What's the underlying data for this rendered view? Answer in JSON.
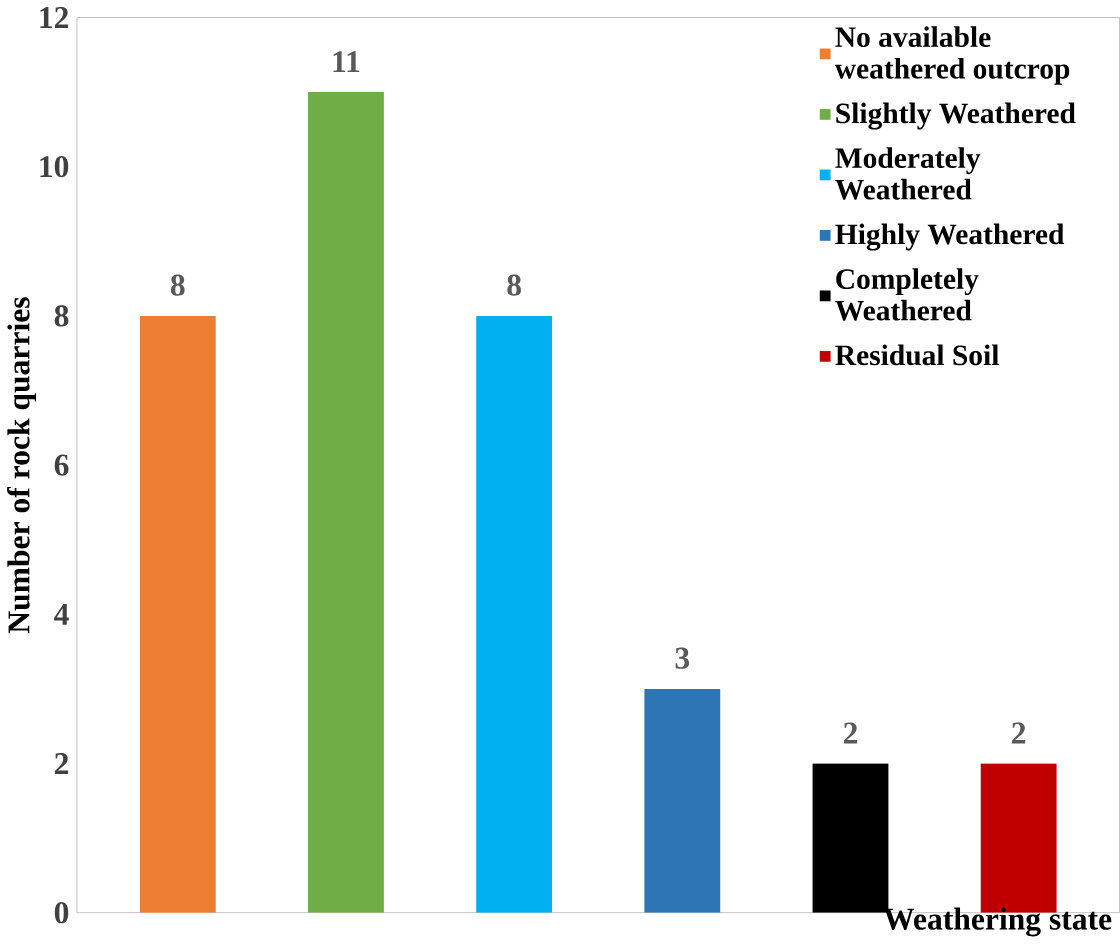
{
  "chart_data": {
    "type": "bar",
    "xlabel": "Weathering state",
    "ylabel": "Number of rock quarries",
    "categories": [
      null,
      null,
      null,
      null,
      null,
      null
    ],
    "stacked": true,
    "series": [
      {
        "name": "No available weathered outcrop",
        "color": "#ed7d31",
        "values": [
          8,
          0,
          0,
          0,
          0,
          0
        ],
        "value_labels": [
          "8",
          null,
          null,
          null,
          null,
          null
        ]
      },
      {
        "name": "Slightly Weathered",
        "color": "#70ad47",
        "values": [
          0,
          11,
          0,
          0,
          0,
          0
        ],
        "value_labels": [
          null,
          "11",
          null,
          null,
          null,
          null
        ]
      },
      {
        "name": "Moderately Weathered",
        "color": "#00b0f0",
        "values": [
          0,
          0,
          8,
          0,
          0,
          0
        ],
        "value_labels": [
          null,
          null,
          "8",
          null,
          null,
          null
        ]
      },
      {
        "name": "Highly Weathered",
        "color": "#2e75b6",
        "values": [
          0,
          0,
          0,
          3,
          0,
          0
        ],
        "value_labels": [
          null,
          null,
          null,
          "3",
          null,
          null
        ]
      },
      {
        "name": "Completely Weathered",
        "color": "#000000",
        "values": [
          0,
          0,
          0,
          0,
          2,
          0
        ],
        "value_labels": [
          null,
          null,
          null,
          null,
          "2",
          null
        ]
      },
      {
        "name": "Residual Soil",
        "color": "#c00000",
        "values": [
          0,
          0,
          0,
          0,
          0,
          2
        ],
        "value_labels": [
          null,
          null,
          null,
          null,
          null,
          "2"
        ]
      }
    ],
    "ylim": [
      0,
      12
    ],
    "yticks": [
      0,
      2,
      4,
      6,
      8,
      10,
      12
    ],
    "legend": "top right",
    "grid": false
  }
}
